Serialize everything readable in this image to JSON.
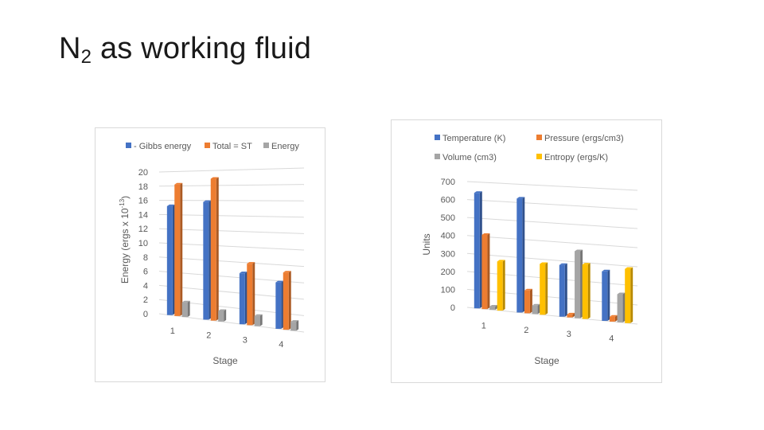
{
  "slide": {
    "title_main": "N",
    "title_sub": "2",
    "title_rest": " as working fluid"
  },
  "colors": {
    "blue": "#4472c4",
    "orange": "#ed7d31",
    "gray": "#a5a5a5",
    "yellow": "#ffc000"
  },
  "chart_data": [
    {
      "type": "bar",
      "title": "",
      "xlabel": "Stage",
      "ylabel": "Energy (ergs x 10",
      "ylabel_sup": "-13",
      "ylabel_end": ")",
      "categories": [
        "1",
        "2",
        "3",
        "4"
      ],
      "ylim": [
        0,
        20
      ],
      "yticks": [
        "0",
        "2",
        "4",
        "6",
        "8",
        "10",
        "12",
        "14",
        "16",
        "18",
        "20"
      ],
      "legend_position": "top",
      "grid": true,
      "series": [
        {
          "name": "- Gibbs  energy",
          "color": "#4472c4",
          "values": [
            15.2,
            15.8,
            6.6,
            5.8
          ]
        },
        {
          "name": "Total = ST",
          "color": "#ed7d31",
          "values": [
            18.2,
            18.9,
            7.9,
            7.1
          ]
        },
        {
          "name": "Energy",
          "color": "#a5a5a5",
          "values": [
            2.0,
            1.4,
            1.3,
            1.1
          ]
        }
      ]
    },
    {
      "type": "bar",
      "title": "",
      "xlabel": "Stage",
      "ylabel": "Units",
      "categories": [
        "1",
        "2",
        "3",
        "4"
      ],
      "ylim": [
        0,
        700
      ],
      "yticks": [
        "0",
        "100",
        "200",
        "300",
        "400",
        "500",
        "600",
        "700"
      ],
      "legend_position": "top",
      "grid": true,
      "series": [
        {
          "name": "Temperature (K)",
          "color": "#4472c4",
          "values": [
            640,
            622,
            278,
            262
          ]
        },
        {
          "name": "Pressure (ergs/cm3)",
          "color": "#ed7d31",
          "values": [
            410,
            124,
            16,
            26
          ]
        },
        {
          "name": "Volume (cm3)",
          "color": "#a5a5a5",
          "values": [
            18,
            46,
            358,
            148
          ]
        },
        {
          "name": "Entropy (ergs/K)",
          "color": "#ffc000",
          "values": [
            270,
            275,
            290,
            285
          ]
        }
      ]
    }
  ]
}
